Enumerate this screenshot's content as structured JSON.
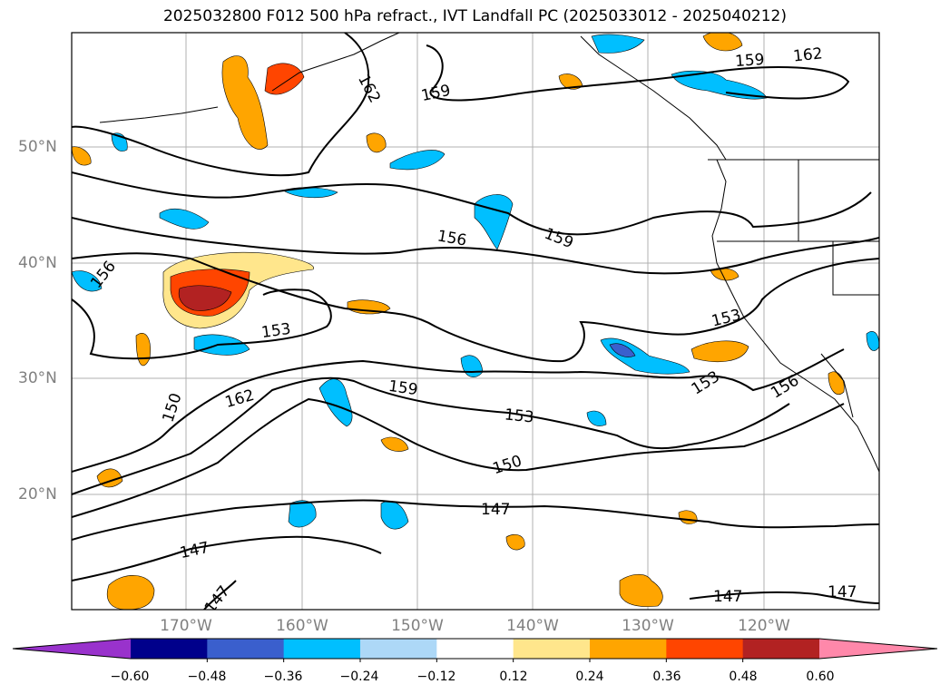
{
  "title": "2025032800 F012 500 hPa refract., IVT Landfall PC (2025033012 - 2025040212)",
  "lat_labels": [
    "50°N",
    "40°N",
    "30°N",
    "20°N"
  ],
  "lon_labels": [
    "170°W",
    "160°W",
    "150°W",
    "140°W",
    "130°W",
    "120°W"
  ],
  "contour_labels": [
    "162",
    "159",
    "162",
    "159",
    "156",
    "159",
    "156",
    "153",
    "153",
    "153",
    "156",
    "150",
    "162",
    "159",
    "153",
    "150",
    "147",
    "147",
    "147",
    "147",
    "147"
  ],
  "colorbar": {
    "ticks": [
      "−0.60",
      "−0.48",
      "−0.36",
      "−0.24",
      "−0.12",
      "0.12",
      "0.24",
      "0.36",
      "0.48",
      "0.60"
    ],
    "colors": [
      "#9932CC",
      "#00008B",
      "#3A5FCD",
      "#00BFFF",
      "#ADD8F7",
      "#FFFFFF",
      "#FFE68C",
      "#FFA500",
      "#FF4500",
      "#B22222",
      "#FF88AA"
    ]
  },
  "fill_colors": {
    "light_blue": "#ADD8F7",
    "blue": "#00BFFF",
    "mid_blue": "#3A5FCD",
    "purple": "#6A5ACD",
    "yellow": "#FFE68C",
    "orange": "#FFA500",
    "red_orange": "#FF4500",
    "dark_red": "#B22222"
  }
}
